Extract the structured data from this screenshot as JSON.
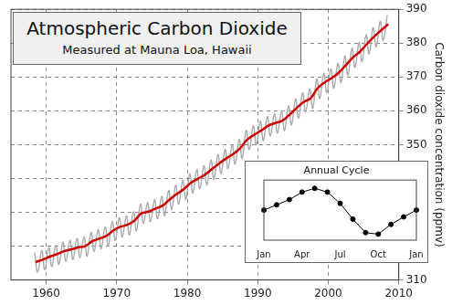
{
  "chart_data": [
    {
      "type": "line",
      "title": "Atmospheric Carbon Dioxide",
      "subtitle": "Measured at Mauna Loa, Hawaii",
      "y_label": "Carbon dioxide concentration (ppmv)",
      "series": [
        {
          "color": "#cc0000",
          "x": [
            1958.5,
            1959.5,
            1960.5,
            1961.5,
            1962.5,
            1963.5,
            1964.5,
            1965.5,
            1966.5,
            1967.5,
            1968.5,
            1969.5,
            1970.5,
            1971.5,
            1972.5,
            1973.5,
            1974.5,
            1975.5,
            1976.5,
            1977.5,
            1978.5,
            1979.5,
            1980.5,
            1981.5,
            1982.5,
            1983.5,
            1984.5,
            1985.5,
            1986.5,
            1987.5,
            1988.5,
            1989.5,
            1990.5,
            1991.5,
            1992.5,
            1993.5,
            1994.5,
            1995.5,
            1996.5,
            1997.5,
            1998.5,
            1999.5,
            2000.5,
            2001.5,
            2002.5,
            2003.5,
            2004.5,
            2005.5,
            2006.5,
            2007.5,
            2008.5
          ],
          "values": [
            315.3,
            316.0,
            316.9,
            317.6,
            318.5,
            319.0,
            319.6,
            320.0,
            321.4,
            322.2,
            323.0,
            324.6,
            325.7,
            326.3,
            327.5,
            329.7,
            330.2,
            331.1,
            332.0,
            333.8,
            335.4,
            336.8,
            338.7,
            339.9,
            341.1,
            342.8,
            344.4,
            345.9,
            347.2,
            348.9,
            351.5,
            352.9,
            354.2,
            355.6,
            356.4,
            357.1,
            358.8,
            360.8,
            362.6,
            363.7,
            366.7,
            368.4,
            369.7,
            371.3,
            373.5,
            375.8,
            377.5,
            379.8,
            381.9,
            383.8,
            385.6
          ]
        },
        {
          "color": "#aaaaaa",
          "x": [
            1958.37,
            1958.79,
            1959.37,
            1959.79,
            1960.37,
            1960.79,
            1961.37,
            1961.79,
            1962.37,
            1962.79,
            1963.37,
            1963.79,
            1964.37,
            1964.79,
            1965.37,
            1965.79,
            1966.37,
            1966.79,
            1967.37,
            1967.79,
            1968.37,
            1968.79,
            1969.37,
            1969.79,
            1970.37,
            1970.79,
            1971.37,
            1971.79,
            1972.37,
            1972.79,
            1973.37,
            1973.79,
            1974.37,
            1974.79,
            1975.37,
            1975.79,
            1976.37,
            1976.79,
            1977.37,
            1977.79,
            1978.37,
            1978.79,
            1979.37,
            1979.79,
            1980.37,
            1980.79,
            1981.37,
            1981.79,
            1982.37,
            1982.79,
            1983.37,
            1983.79,
            1984.37,
            1984.79,
            1985.37,
            1985.79,
            1986.37,
            1986.79,
            1987.37,
            1987.79,
            1988.37,
            1988.79,
            1989.37,
            1989.79,
            1990.37,
            1990.79,
            1991.37,
            1991.79,
            1992.37,
            1992.79,
            1993.37,
            1993.79,
            1994.37,
            1994.79,
            1995.37,
            1995.79,
            1996.37,
            1996.79,
            1997.37,
            1997.79,
            1998.37,
            1998.79,
            1999.37,
            1999.79,
            2000.37,
            2000.79,
            2001.37,
            2001.79,
            2002.37,
            2002.79,
            2003.37,
            2003.79,
            2004.37,
            2004.79,
            2005.37,
            2005.79,
            2006.37,
            2006.79,
            2007.37,
            2007.79,
            2008.37
          ],
          "values": [
            318.0,
            312.3,
            318.7,
            313.0,
            319.6,
            313.9,
            320.3,
            314.6,
            321.2,
            315.5,
            321.7,
            316.0,
            322.3,
            316.6,
            322.7,
            317.0,
            324.1,
            318.4,
            324.9,
            319.2,
            325.7,
            320.0,
            327.3,
            321.6,
            328.4,
            322.7,
            329.0,
            323.3,
            330.2,
            324.5,
            332.4,
            326.7,
            332.9,
            327.2,
            333.8,
            328.1,
            334.7,
            329.0,
            336.5,
            330.8,
            338.1,
            332.4,
            339.5,
            333.8,
            341.4,
            335.7,
            342.6,
            336.9,
            343.8,
            338.1,
            345.5,
            339.8,
            347.1,
            341.4,
            348.6,
            342.9,
            349.9,
            344.2,
            351.6,
            345.9,
            354.2,
            348.5,
            355.6,
            349.9,
            356.9,
            351.2,
            358.3,
            352.6,
            359.1,
            353.4,
            359.8,
            354.1,
            361.5,
            355.8,
            363.5,
            357.8,
            365.3,
            359.6,
            366.4,
            360.7,
            369.4,
            363.7,
            371.1,
            365.4,
            372.4,
            366.7,
            374.0,
            368.3,
            376.2,
            370.5,
            378.5,
            372.8,
            380.2,
            374.5,
            382.5,
            376.8,
            384.6,
            378.9,
            386.5,
            380.8,
            388.3
          ]
        }
      ],
      "xlim": [
        1955,
        2010
      ],
      "xticks": [
        1960,
        1970,
        1980,
        1990,
        2000,
        2010
      ],
      "ylim": [
        310,
        390
      ],
      "yticks": [
        310,
        320,
        330,
        340,
        350,
        360,
        370,
        380,
        390
      ],
      "grid": true
    },
    {
      "type": "line",
      "title": "Annual Cycle",
      "categories": [
        "Jan",
        null,
        null,
        "Apr",
        null,
        null,
        "Jul",
        null,
        null,
        "Oct",
        null,
        null,
        "Jan"
      ],
      "values": [
        0,
        0.7,
        1.4,
        2.4,
        2.9,
        2.4,
        0.9,
        -1.2,
        -3.0,
        -3.2,
        -1.9,
        -0.9,
        0
      ],
      "color": "#000000",
      "marker": "circle",
      "ylim": [
        -4,
        4
      ],
      "tick_labels": "x",
      "grid": false
    }
  ]
}
